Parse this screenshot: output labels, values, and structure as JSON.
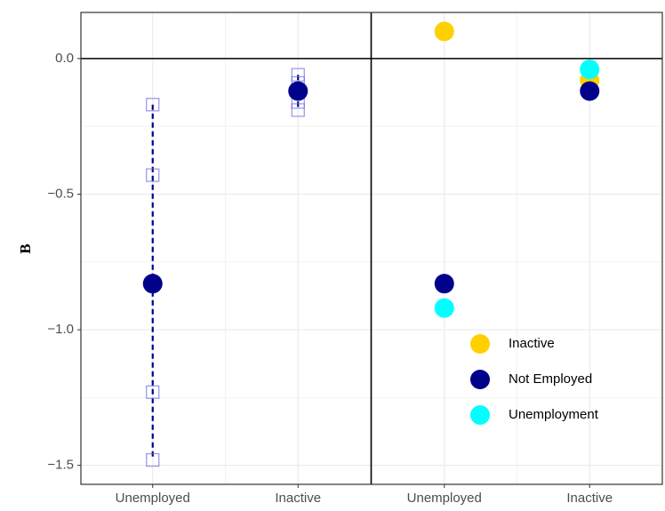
{
  "chart_data": {
    "type": "scatter",
    "y_label": "B",
    "categories": [
      "Unemployed",
      "Inactive",
      "Unemployed",
      "Inactive"
    ],
    "series": [
      {
        "name": "Inactive",
        "color": "#FFD000",
        "values": [
          null,
          null,
          0.1,
          -0.08
        ]
      },
      {
        "name": "Not Employed",
        "color": "#00008B",
        "values": [
          -0.83,
          -0.12,
          -0.83,
          -0.12
        ]
      },
      {
        "name": "Unemployment",
        "color": "#00FFFF",
        "values": [
          null,
          null,
          -0.92,
          -0.04
        ]
      }
    ],
    "markers": {
      "color": "#7070E0",
      "values": [
        [
          -0.17,
          -0.43,
          -1.23,
          -1.48
        ],
        [
          -0.06,
          -0.09,
          -0.16,
          -0.19
        ],
        null,
        null
      ]
    },
    "reference_line": 0,
    "ylim": [
      -1.57,
      0.17
    ],
    "yticks": [
      {
        "value": 0,
        "label": "0.0"
      },
      {
        "value": -0.5,
        "label": "−0.5"
      },
      {
        "value": -1,
        "label": "−1.0"
      },
      {
        "value": -1.5,
        "label": "−1.5"
      }
    ],
    "grid": true,
    "legend": "bottom-right"
  }
}
